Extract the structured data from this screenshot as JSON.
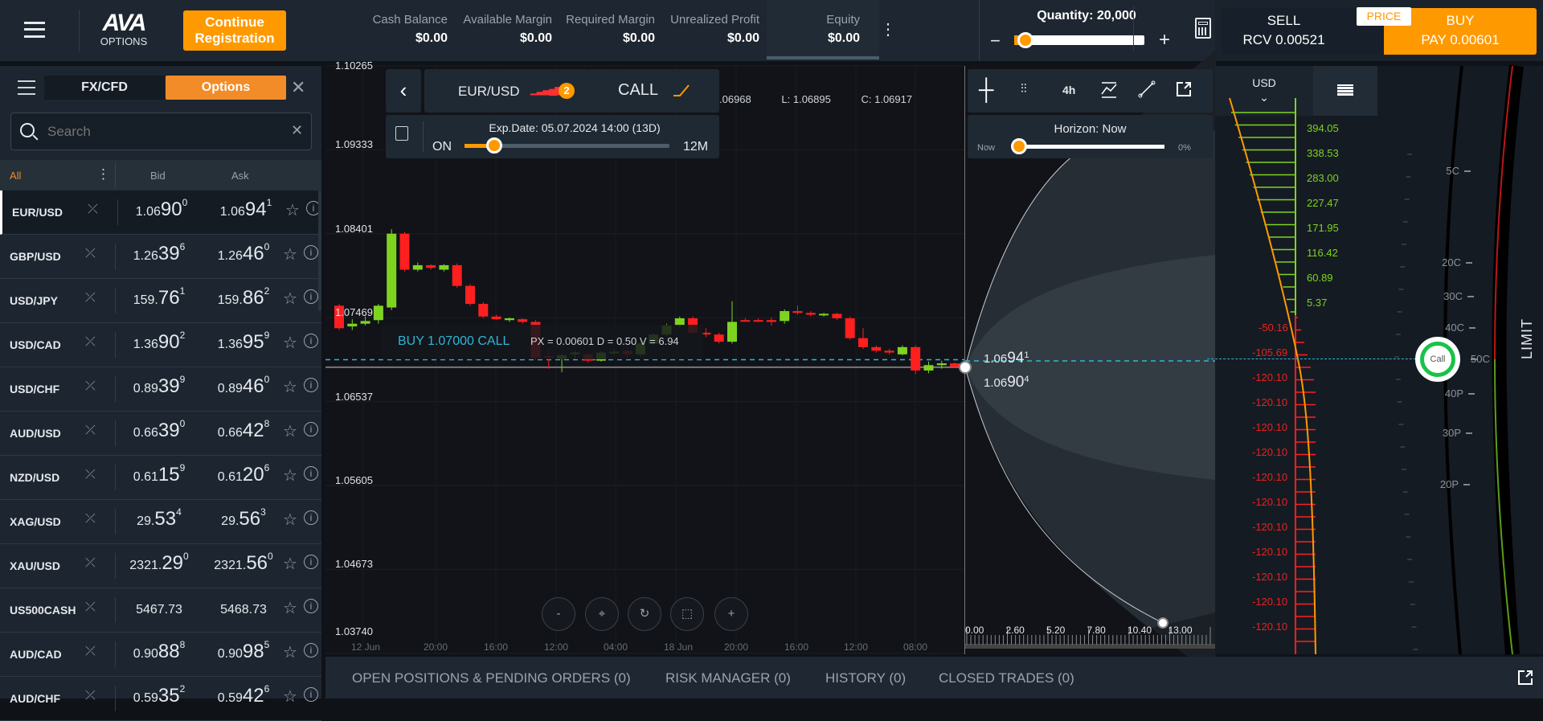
{
  "header": {
    "logo_top": "AVA",
    "logo_bottom": "OPTIONS",
    "continue_label_1": "Continue",
    "continue_label_2": "Registration",
    "stats": [
      {
        "label": "Cash Balance",
        "value": "$0.00"
      },
      {
        "label": "Available Margin",
        "value": "$0.00"
      },
      {
        "label": "Required Margin",
        "value": "$0.00"
      },
      {
        "label": "Unrealized Profit",
        "value": "$0.00"
      },
      {
        "label": "Equity",
        "value": "$0.00"
      }
    ],
    "quantity_label": "Quantity: 20,000",
    "quantity_fraction": 0.05,
    "sell_label": "SELL",
    "sell_value": "RCV 0.00521",
    "price_tag": "PRICE",
    "buy_label": "BUY",
    "buy_value": "PAY 0.00601"
  },
  "sidebar": {
    "tabs": [
      "FX/CFD",
      "Options"
    ],
    "active_tab": "Options",
    "search_placeholder": "Search",
    "filter": "All",
    "bid_header": "Bid",
    "ask_header": "Ask",
    "rows": [
      {
        "symbol": "EUR/USD",
        "bid": [
          "1.06",
          "90",
          "0"
        ],
        "ask": [
          "1.06",
          "94",
          "1"
        ],
        "selected": true
      },
      {
        "symbol": "GBP/USD",
        "bid": [
          "1.26",
          "39",
          "6"
        ],
        "ask": [
          "1.26",
          "46",
          "0"
        ]
      },
      {
        "symbol": "USD/JPY",
        "bid": [
          "159.",
          "76",
          "1"
        ],
        "ask": [
          "159.",
          "86",
          "2"
        ]
      },
      {
        "symbol": "USD/CAD",
        "bid": [
          "1.36",
          "90",
          "2"
        ],
        "ask": [
          "1.36",
          "95",
          "9"
        ]
      },
      {
        "symbol": "USD/CHF",
        "bid": [
          "0.89",
          "39",
          "9"
        ],
        "ask": [
          "0.89",
          "46",
          "0"
        ]
      },
      {
        "symbol": "AUD/USD",
        "bid": [
          "0.66",
          "39",
          "0"
        ],
        "ask": [
          "0.66",
          "42",
          "8"
        ]
      },
      {
        "symbol": "NZD/USD",
        "bid": [
          "0.61",
          "15",
          "9"
        ],
        "ask": [
          "0.61",
          "20",
          "6"
        ]
      },
      {
        "symbol": "XAG/USD",
        "bid": [
          "29.",
          "53",
          "4"
        ],
        "ask": [
          "29.",
          "56",
          "3"
        ]
      },
      {
        "symbol": "XAU/USD",
        "bid": [
          "2321.",
          "29",
          "0"
        ],
        "ask": [
          "2321.",
          "56",
          "0"
        ]
      },
      {
        "symbol": "US500CASH",
        "bid": [
          "5467.73",
          "",
          ""
        ],
        "ask": [
          "5468.73",
          "",
          ""
        ]
      },
      {
        "symbol": "AUD/CAD",
        "bid": [
          "0.90",
          "88",
          "8"
        ],
        "ask": [
          "0.90",
          "98",
          "5"
        ]
      },
      {
        "symbol": "AUD/CHF",
        "bid": [
          "0.59",
          "35",
          "2"
        ],
        "ask": [
          "0.59",
          "42",
          "6"
        ]
      }
    ]
  },
  "chart": {
    "instrument": "EUR/USD",
    "badge": "2",
    "option_type": "CALL",
    "exp_date": "Exp.Date: 05.07.2024 14:00 (13D)",
    "exp_min": "ON",
    "exp_max": "12M",
    "exp_fraction": 0.13,
    "ohlc": {
      "h": ".06968",
      "l_label": "L:",
      "l": "1.06895",
      "c_label": "C:",
      "c": "1.06917"
    },
    "y_ticks": [
      "1.10265",
      "1.09333",
      "1.08401",
      "1.07469",
      "1.06537",
      "1.05605",
      "1.04673",
      "1.03740"
    ],
    "x_ticks": [
      "12 Jun",
      "20:00",
      "16:00",
      "12:00",
      "04:00",
      "18 Jun",
      "20:00",
      "16:00",
      "12:00",
      "08:00"
    ],
    "order_label": "BUY 1.07000 CALL",
    "order_detail": "PX = 0.00601 D = 0.50 V = 6.94",
    "current_bid": [
      "1.06",
      "90",
      "4"
    ],
    "current_ask": [
      "1.06",
      "94",
      "1"
    ],
    "strike": 1.07,
    "last": 1.06917,
    "candles": [
      [
        1.076,
        1.0762,
        1.0733,
        1.0735
      ],
      [
        1.0737,
        1.0745,
        1.0733,
        1.074
      ],
      [
        1.074,
        1.0748,
        1.0738,
        1.0743
      ],
      [
        1.0744,
        1.0762,
        1.074,
        1.076
      ],
      [
        1.0758,
        1.0845,
        1.0755,
        1.084
      ],
      [
        1.084,
        1.0842,
        1.0798,
        1.08
      ],
      [
        1.08,
        1.0808,
        1.0798,
        1.0805
      ],
      [
        1.0805,
        1.0806,
        1.08,
        1.0802
      ],
      [
        1.08,
        1.0806,
        1.0798,
        1.0805
      ],
      [
        1.0805,
        1.0807,
        1.078,
        1.0782
      ],
      [
        1.0782,
        1.0784,
        1.076,
        1.0762
      ],
      [
        1.0762,
        1.0764,
        1.0746,
        1.0748
      ],
      [
        1.0748,
        1.075,
        1.0744,
        1.0745
      ],
      [
        1.0744,
        1.0747,
        1.0742,
        1.0746
      ],
      [
        1.0745,
        1.0746,
        1.074,
        1.0742
      ],
      [
        1.0742,
        1.0744,
        1.07,
        1.0702
      ],
      [
        1.0704,
        1.0712,
        1.069,
        1.0703
      ],
      [
        1.0701,
        1.0707,
        1.0686,
        1.0705
      ],
      [
        1.0706,
        1.071,
        1.07,
        1.0708
      ],
      [
        1.0706,
        1.0708,
        1.0697,
        1.0699
      ],
      [
        1.0699,
        1.071,
        1.0698,
        1.0708
      ],
      [
        1.0708,
        1.0712,
        1.0705,
        1.0709
      ],
      [
        1.071,
        1.0712,
        1.07,
        1.0706
      ],
      [
        1.0706,
        1.072,
        1.0704,
        1.0718
      ],
      [
        1.0718,
        1.073,
        1.0716,
        1.0728
      ],
      [
        1.0728,
        1.074,
        1.0726,
        1.0738
      ],
      [
        1.0738,
        1.0748,
        1.0736,
        1.0746
      ],
      [
        1.0746,
        1.0748,
        1.0728,
        1.073
      ],
      [
        1.073,
        1.0735,
        1.0725,
        1.0728
      ],
      [
        1.0728,
        1.073,
        1.0718,
        1.072
      ],
      [
        1.072,
        1.0765,
        1.0718,
        1.0742
      ],
      [
        1.0744,
        1.0746,
        1.0742,
        1.0743
      ],
      [
        1.0744,
        1.0746,
        1.0742,
        1.0743
      ],
      [
        1.0744,
        1.0747,
        1.0738,
        1.0742
      ],
      [
        1.0743,
        1.0756,
        1.074,
        1.0754
      ],
      [
        1.0754,
        1.076,
        1.075,
        1.0752
      ],
      [
        1.0752,
        1.0754,
        1.0748,
        1.075
      ],
      [
        1.075,
        1.0752,
        1.0748,
        1.0751
      ],
      [
        1.0751,
        1.0752,
        1.0744,
        1.0746
      ],
      [
        1.0746,
        1.0748,
        1.0722,
        1.0724
      ],
      [
        1.0724,
        1.0735,
        1.0712,
        1.0714
      ],
      [
        1.0714,
        1.0716,
        1.0708,
        1.071
      ],
      [
        1.071,
        1.0712,
        1.0706,
        1.0708
      ],
      [
        1.0706,
        1.0716,
        1.0705,
        1.0714
      ],
      [
        1.0714,
        1.0716,
        1.0684,
        1.0688
      ],
      [
        1.0688,
        1.0698,
        1.0685,
        1.0694
      ],
      [
        1.0694,
        1.0699,
        1.069,
        1.0696
      ],
      [
        1.0696,
        1.0697,
        1.0691,
        1.0692
      ]
    ],
    "colors": {
      "up": "#7ed321",
      "down": "#ff1f1f",
      "accent": "#ff9900",
      "strike_line": "#2fb5d8"
    }
  },
  "vol": {
    "timeframe": "4h",
    "horizon_label": "Horizon: Now",
    "horizon_min": "Now",
    "horizon_pct": "0%",
    "x_ticks": [
      "0.00",
      "2.60",
      "5.20",
      "7.80",
      "10.40",
      "13.00"
    ]
  },
  "right": {
    "currency": "USD",
    "profits": [
      "394.05",
      "338.53",
      "283.00",
      "227.47",
      "171.95",
      "116.42",
      "60.89",
      "5.37"
    ],
    "losses": [
      "-50.16",
      "-105.69",
      "-120.10",
      "-120.10",
      "-120.10",
      "-120.10",
      "-120.10",
      "-120.10",
      "-120.10",
      "-120.10",
      "-120.10",
      "-120.10",
      "-120.10"
    ],
    "strikes": [
      "5C",
      "20C",
      "30C",
      "40C",
      "50C",
      "40P",
      "30P",
      "20P"
    ],
    "call_label": "Call",
    "limit_label": "LIMIT"
  },
  "bottom_tabs": [
    "OPEN POSITIONS & PENDING ORDERS (0)",
    "RISK MANAGER (0)",
    "HISTORY (0)",
    "CLOSED TRADES (0)"
  ]
}
